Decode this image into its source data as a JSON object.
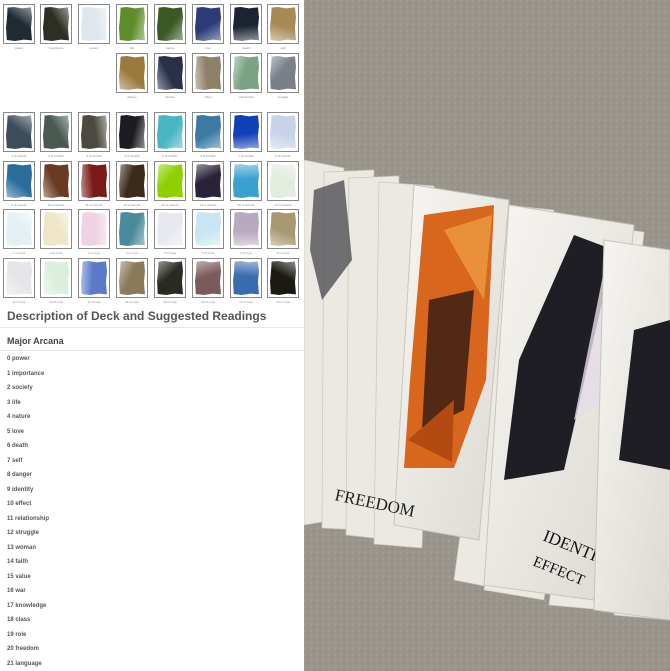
{
  "section_title": "Description of Deck and Suggested Readings",
  "subsection_title": "Major Arcana",
  "arcana": [
    "0 power",
    "1 importance",
    "2 society",
    "3 life",
    "4 nature",
    "5 love",
    "6 death",
    "7 self",
    "8 danger",
    "9 identity",
    "10 effect",
    "11 relationship",
    "12 struggle",
    "13 woman",
    "14 faith",
    "15 value",
    "16 war",
    "17 knowledge",
    "18 class",
    "19 role",
    "20 freedom",
    "21 language"
  ],
  "thumbnail_captions": {
    "group1": [
      "power",
      "importance",
      "society",
      "life",
      "nature",
      "love",
      "death",
      "self",
      "danger",
      "identity",
      "effect",
      "relationship",
      "struggle"
    ],
    "group2": [
      "1 of swords",
      "2 of swords",
      "3 of swords",
      "4 of swords",
      "5 of swords",
      "6 of swords",
      "7 of swords",
      "8 of swords",
      "9 of swords",
      "10 of swords",
      "11 of swords",
      "12 of swords",
      "13 of swords",
      "14 of swords",
      "15 of swords",
      "16 of swords",
      "1 of cups",
      "2 of cups",
      "3 of cups",
      "4 of cups",
      "5 of cups",
      "6 of cups",
      "7 of cups",
      "8 of cups",
      "9 of cups",
      "10 of cups",
      "11 of cups",
      "12 of cups",
      "13 of cups",
      "14 of cups",
      "15 of cups",
      "16 of cups"
    ]
  },
  "thumb_colors": {
    "group1": [
      "#1f2a33",
      "#2c2f24",
      "#dfe6ee",
      "#5f8d2c",
      "#3a5a25",
      "#2d3c78",
      "#1b2430",
      "#a88a55",
      "#9a7a3c",
      "#2a3048",
      "#8d7f68",
      "#7ba382",
      "#7a7f88"
    ],
    "group2": [
      "#3d4c5a",
      "#4a5a52",
      "#4c4a40",
      "#1c1c22",
      "#49b6c4",
      "#3c7aa5",
      "#1040b8",
      "#c9d3e8",
      "#2a6d9a",
      "#6a3a22",
      "#7a1a18",
      "#3a2a1a",
      "#8fd000",
      "#2a2238",
      "#3aa0d0",
      "#e4ece0",
      "#e4f0f4",
      "#efe6c8",
      "#efd2e4",
      "#4a8a9a",
      "#e8e8f0",
      "#c8e6f2",
      "#b8a8c0",
      "#a89870",
      "#e6e6ea",
      "#dceede",
      "#5a7ac8",
      "#8a7a5a",
      "#2a2a24",
      "#7a5a5a",
      "#3a6ab0",
      "#1a1a12"
    ]
  },
  "photo_card_labels": [
    "FREEDOM",
    "IDENTITY",
    "EFFECT"
  ],
  "photo_colors": {
    "carpet": "#9a958c",
    "card": "#f4f2ee",
    "orange_art": "#d8661c",
    "dark_art": "#1e1e24"
  }
}
